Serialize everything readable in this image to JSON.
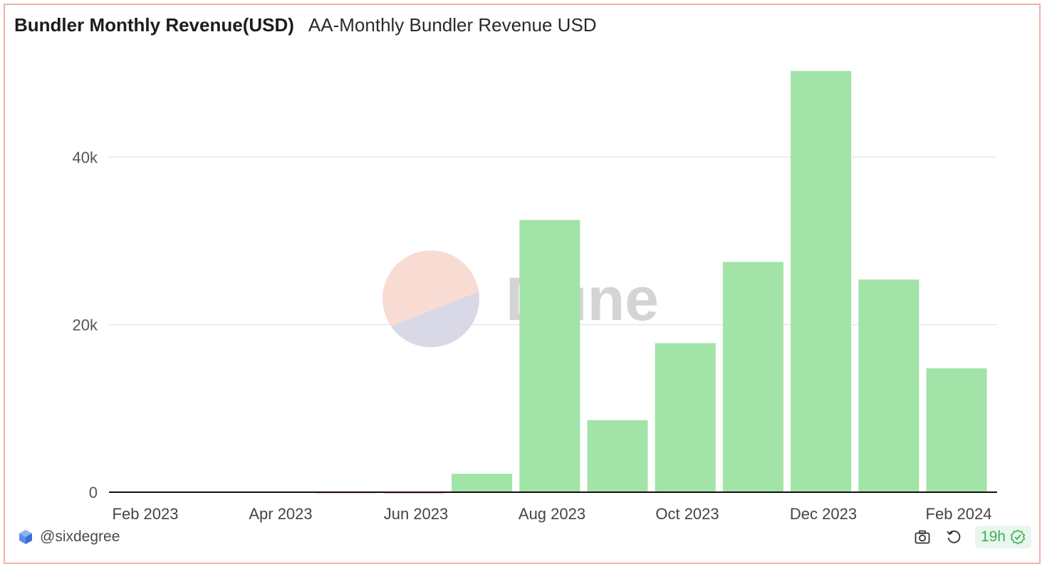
{
  "header": {
    "title": "Bundler Monthly Revenue(USD)",
    "subtitle": "AA-Monthly Bundler Revenue USD"
  },
  "watermark": {
    "text": "Dune"
  },
  "footer": {
    "author": "@sixdegree",
    "freshness": "19h",
    "icons": [
      "camera-icon",
      "refresh-icon",
      "check-badge-icon"
    ]
  },
  "colors": {
    "bar": "#a2e3a8",
    "negative_bar": "#f3a394",
    "grid": "#e8e8e8",
    "axis": "#111111",
    "border": "#f1b2a3"
  },
  "chart_data": {
    "type": "bar",
    "categories": [
      "Feb 2023",
      "Mar 2023",
      "Apr 2023",
      "May 2023",
      "Jun 2023",
      "Jul 2023",
      "Aug 2023",
      "Sep 2023",
      "Oct 2023",
      "Nov 2023",
      "Dec 2023",
      "Jan 2024",
      "Feb 2024"
    ],
    "values": [
      0,
      0,
      0,
      -20,
      -150,
      2200,
      32500,
      8600,
      17800,
      27500,
      50300,
      25400,
      14800
    ],
    "x_tick_labels": [
      "Feb 2023",
      "Apr 2023",
      "Jun 2023",
      "Aug 2023",
      "Oct 2023",
      "Dec 2023",
      "Feb 2024"
    ],
    "y_ticks": [
      0,
      20000,
      40000
    ],
    "y_tick_labels": [
      "0",
      "20k",
      "40k"
    ],
    "ylim": [
      0,
      53000
    ],
    "xlabel": "",
    "ylabel": "",
    "grid": true,
    "legend": false
  }
}
